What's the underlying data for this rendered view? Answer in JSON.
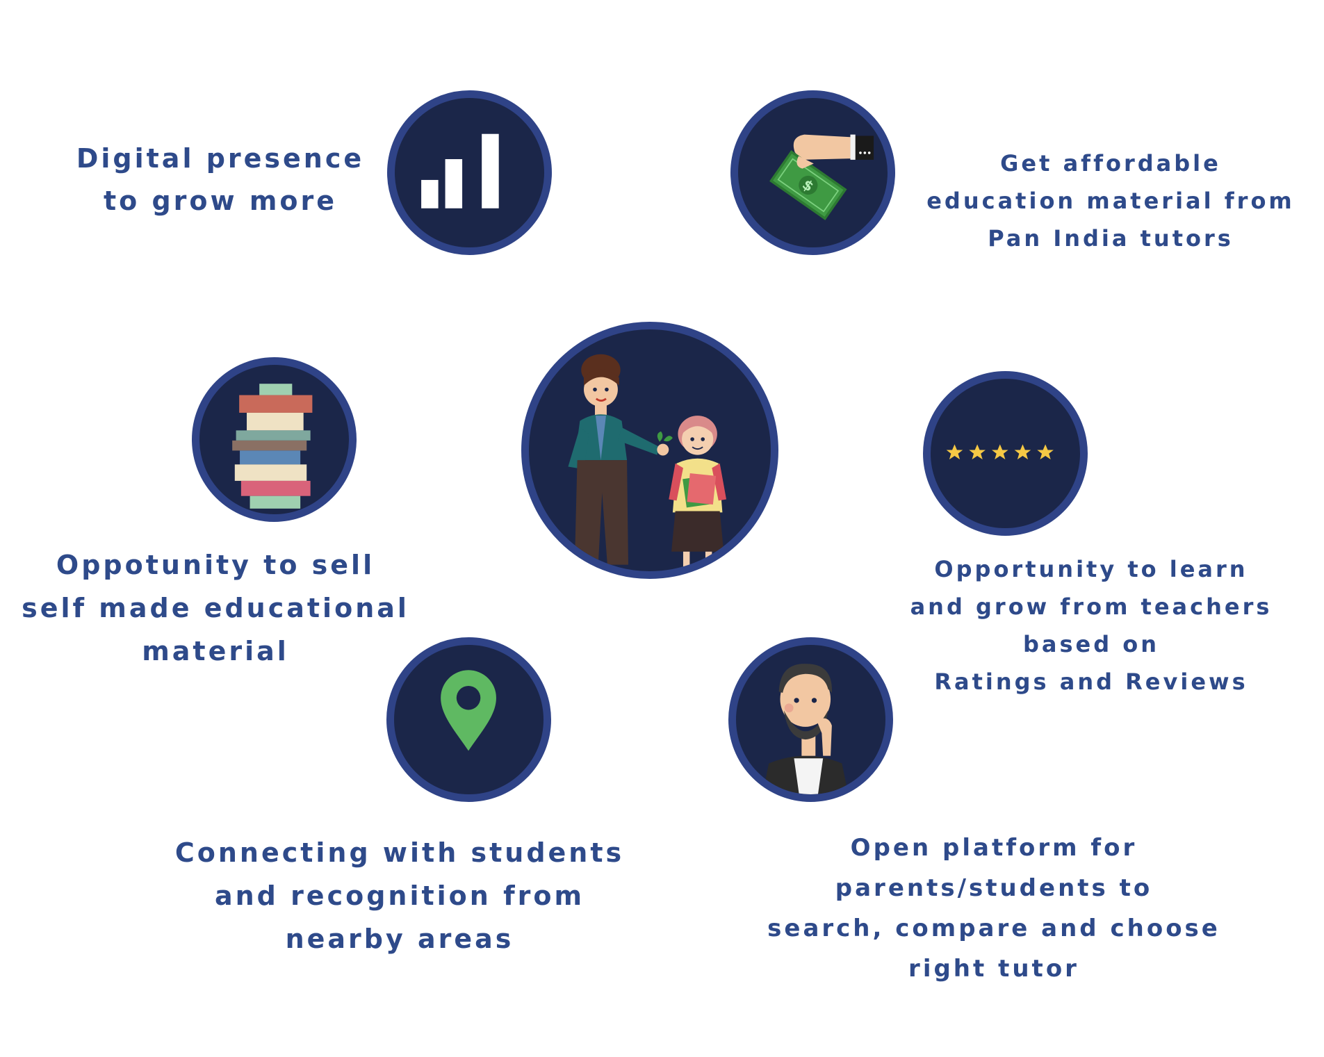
{
  "colors": {
    "circle_fill": "#1b2649",
    "circle_border": "#2f4387",
    "text": "#2e4a8a",
    "pin": "#5fb962",
    "stars": "#f6c945",
    "money": "#3f9a43"
  },
  "center": {
    "icon": "teacher-student-illustration"
  },
  "features": [
    {
      "id": "digital-presence",
      "icon": "bar-chart-icon",
      "lines": [
        "Digital presence",
        "to grow more"
      ]
    },
    {
      "id": "affordable-material",
      "icon": "money-hand-icon",
      "lines": [
        "Get affordable",
        "education material from",
        "Pan India tutors"
      ]
    },
    {
      "id": "sell-material",
      "icon": "book-stack-icon",
      "lines": [
        "Oppotunity to sell",
        "self made educational",
        "material"
      ]
    },
    {
      "id": "ratings",
      "icon": "five-stars-icon",
      "lines": [
        "Opportunity to learn",
        "and grow from teachers",
        "based on",
        "Ratings and Reviews"
      ]
    },
    {
      "id": "connecting",
      "icon": "location-pin-icon",
      "lines": [
        "Connecting with students",
        "and recognition from",
        "nearby areas"
      ]
    },
    {
      "id": "open-platform",
      "icon": "thinking-man-icon",
      "lines": [
        "Open platform for",
        "parents/students to",
        "search, compare and choose",
        "right tutor"
      ]
    }
  ]
}
